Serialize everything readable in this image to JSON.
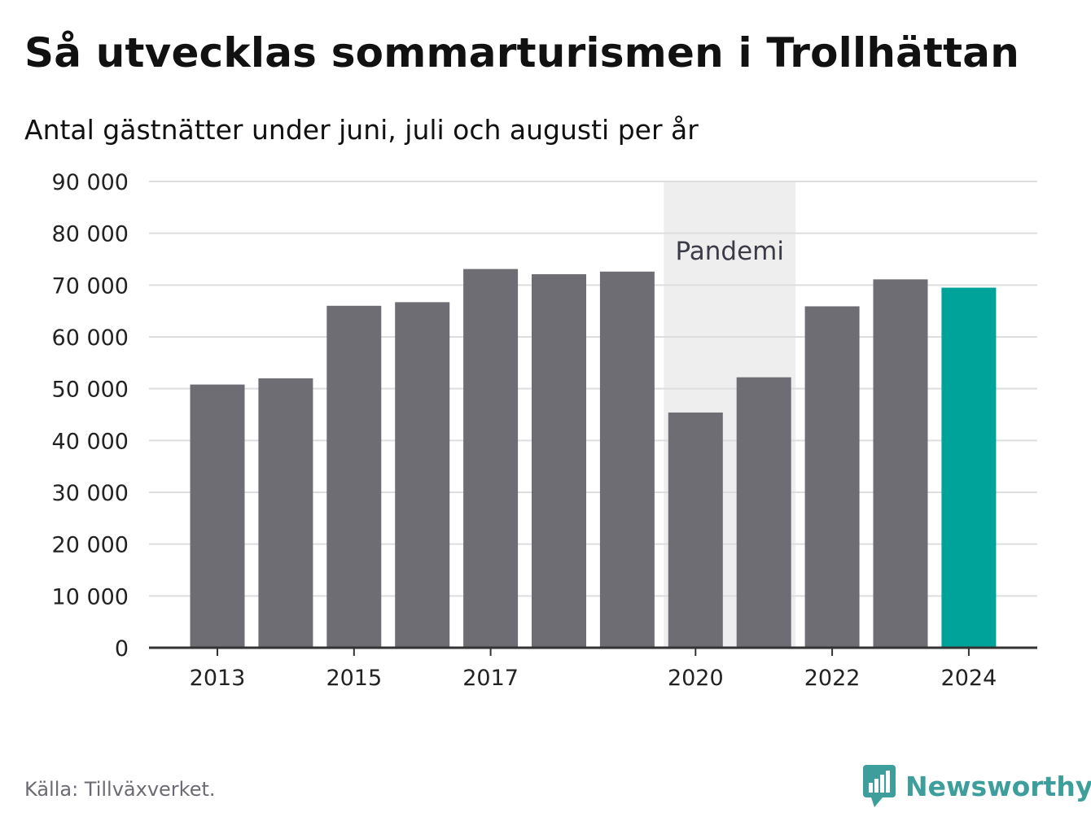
{
  "header": {
    "title": "Så utvecklas sommarturismen i Trollhättan",
    "subtitle": "Antal gästnätter under juni, juli och augusti per år"
  },
  "footer": {
    "source": "Källa: Tillväxverket.",
    "brand": "Newsworthy"
  },
  "colors": {
    "bar": "#6e6d74",
    "highlight": "#00a39a",
    "band": "#eeeeee",
    "grid": "#dddddd",
    "axis": "#333333",
    "brand": "#3d9e9c"
  },
  "chart_data": {
    "type": "bar",
    "title": "Så utvecklas sommarturismen i Trollhättan",
    "subtitle": "Antal gästnätter under juni, juli och augusti per år",
    "x": [
      2013,
      2014,
      2015,
      2016,
      2017,
      2018,
      2019,
      2020,
      2021,
      2022,
      2023,
      2024
    ],
    "values": [
      50800,
      52000,
      66000,
      66700,
      73100,
      72100,
      72600,
      45400,
      52200,
      65900,
      71100,
      69500
    ],
    "highlight_x": 2024,
    "ylim": [
      0,
      90000
    ],
    "yticks": [
      0,
      10000,
      20000,
      30000,
      40000,
      50000,
      60000,
      70000,
      80000,
      90000
    ],
    "ytick_labels": [
      "0",
      "10 000",
      "20 000",
      "30 000",
      "40 000",
      "50 000",
      "60 000",
      "70 000",
      "80 000",
      "90 000"
    ],
    "xticks": [
      2013,
      2015,
      2017,
      2020,
      2022,
      2024
    ],
    "xtick_labels": [
      "2013",
      "2015",
      "2017",
      "2020",
      "2022",
      "2024"
    ],
    "grid": true,
    "annotations": [
      {
        "label": "Pandemi",
        "x_start": 2020,
        "x_end": 2021
      }
    ]
  }
}
